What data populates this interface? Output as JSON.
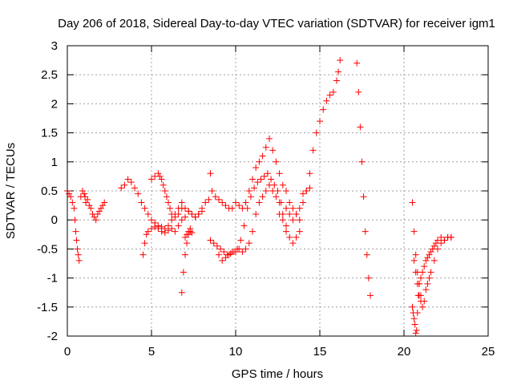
{
  "chart_data": {
    "type": "scatter",
    "title": "Day 206 of 2018, Sidereal Day-to-day VTEC variation (SDTVAR) for receiver igm1",
    "xlabel": "GPS time / hours",
    "ylabel": "SDTVAR / TECUs",
    "xlim": [
      0,
      25
    ],
    "ylim": [
      -2,
      3
    ],
    "xticks": [
      0,
      5,
      10,
      15,
      20,
      25
    ],
    "yticks": [
      -2,
      -1.5,
      -1,
      -0.5,
      0,
      0.5,
      1,
      1.5,
      2,
      2.5,
      3
    ],
    "xtick_labels": [
      "0",
      "5",
      "10",
      "15",
      "20",
      "25"
    ],
    "ytick_labels": [
      "-2",
      "-1.5",
      "-1",
      "-0.5",
      "0",
      "0.5",
      "1",
      "1.5",
      "2",
      "2.5",
      "3"
    ],
    "grid": true,
    "marker": "plus",
    "color": "#ff0000",
    "series": [
      {
        "name": "SDTVAR",
        "x": [
          0.0,
          0.1,
          0.2,
          0.3,
          0.4,
          0.45,
          0.5,
          0.55,
          0.6,
          0.65,
          0.7,
          0.8,
          0.9,
          1.0,
          1.05,
          1.1,
          1.2,
          1.3,
          1.4,
          1.5,
          1.6,
          1.7,
          1.8,
          1.9,
          2.0,
          2.1,
          2.2,
          3.2,
          3.4,
          3.6,
          3.8,
          4.0,
          4.2,
          4.4,
          4.6,
          4.8,
          5.0,
          5.2,
          5.4,
          5.6,
          5.8,
          6.0,
          6.2,
          6.4,
          6.6,
          6.8,
          7.0,
          7.2,
          7.4,
          7.6,
          7.8,
          8.0,
          8.2,
          8.4,
          4.5,
          4.6,
          4.7,
          4.8,
          5.0,
          5.2,
          5.4,
          5.6,
          5.8,
          6.0,
          6.2,
          6.4,
          6.6,
          6.8,
          7.0,
          7.2,
          7.4,
          7.6,
          7.8,
          8.0,
          5.0,
          5.2,
          5.4,
          5.5,
          5.6,
          5.7,
          5.8,
          5.9,
          6.0,
          6.1,
          6.2,
          6.4,
          6.6,
          6.8,
          6.8,
          6.9,
          7.0,
          7.1,
          7.2,
          7.3,
          7.0,
          7.1,
          7.2,
          7.3,
          7.4,
          8.5,
          8.6,
          8.8,
          9.0,
          9.2,
          9.4,
          9.6,
          9.8,
          10.0,
          10.2,
          10.4,
          10.6,
          10.8,
          11.0,
          11.2,
          11.4,
          11.6,
          11.8,
          12.0,
          12.2,
          12.4,
          12.6,
          12.8,
          13.0,
          13.2,
          13.4,
          13.6,
          13.8,
          9.0,
          9.2,
          9.4,
          9.6,
          9.8,
          10.0,
          10.2,
          10.4,
          10.6,
          10.8,
          11.0,
          11.2,
          11.4,
          11.6,
          11.8,
          12.0,
          12.2,
          12.4,
          12.6,
          12.8,
          13.0,
          8.5,
          8.7,
          8.9,
          9.1,
          9.3,
          9.5,
          9.7,
          9.9,
          10.1,
          10.3,
          10.5,
          10.7,
          10.9,
          11.1,
          11.3,
          11.5,
          11.7,
          11.9,
          12.1,
          12.3,
          12.5,
          12.7,
          12.6,
          12.8,
          13.0,
          13.2,
          13.4,
          13.6,
          13.8,
          14.0,
          14.2,
          14.4,
          14.6,
          14.8,
          15.0,
          15.2,
          15.4,
          15.6,
          15.8,
          16.0,
          16.1,
          16.2,
          13.0,
          13.2,
          13.4,
          13.6,
          13.8,
          14.0,
          14.2,
          14.4,
          17.2,
          17.3,
          17.4,
          17.5,
          17.6,
          17.7,
          17.8,
          17.9,
          18.0,
          20.5,
          20.55,
          20.6,
          20.65,
          20.7,
          20.75,
          20.8,
          20.85,
          20.9,
          21.0,
          21.1,
          21.2,
          21.3,
          21.4,
          21.5,
          21.6,
          21.7,
          21.8,
          21.9,
          22.0,
          22.2,
          22.4,
          22.6,
          22.8,
          20.6,
          20.7,
          20.8,
          20.9,
          21.0,
          21.1,
          21.2,
          21.3,
          21.4,
          21.5,
          21.6,
          21.8,
          22.0,
          22.2,
          22.4,
          22.6,
          22.8,
          20.5,
          20.6,
          20.7,
          20.8,
          20.9,
          21.0
        ],
        "y": [
          0.5,
          0.45,
          0.4,
          0.3,
          0.2,
          0.0,
          -0.2,
          -0.35,
          -0.5,
          -0.6,
          -0.7,
          0.4,
          0.5,
          0.45,
          0.4,
          0.3,
          0.35,
          0.25,
          0.2,
          0.1,
          0.05,
          0.0,
          0.1,
          0.15,
          0.2,
          0.25,
          0.3,
          0.55,
          0.6,
          0.7,
          0.65,
          0.55,
          0.45,
          0.3,
          0.2,
          0.1,
          0.0,
          -0.05,
          -0.1,
          -0.12,
          -0.15,
          -0.1,
          0.0,
          0.1,
          0.2,
          0.3,
          0.2,
          0.15,
          0.1,
          0.05,
          0.1,
          0.2,
          0.3,
          0.35,
          -0.6,
          -0.4,
          -0.25,
          -0.2,
          -0.15,
          -0.12,
          -0.15,
          -0.2,
          -0.22,
          -0.18,
          -0.15,
          -0.2,
          -0.1,
          0.0,
          0.05,
          0.15,
          0.1,
          0.05,
          0.1,
          0.15,
          0.7,
          0.75,
          0.8,
          0.75,
          0.7,
          0.6,
          0.5,
          0.4,
          0.3,
          0.2,
          0.1,
          0.05,
          0.1,
          0.2,
          -1.25,
          -0.9,
          -0.6,
          -0.4,
          -0.25,
          -0.15,
          -0.3,
          -0.25,
          -0.2,
          -0.2,
          -0.22,
          0.8,
          0.5,
          0.4,
          0.35,
          0.3,
          0.25,
          0.2,
          0.2,
          0.3,
          0.25,
          0.2,
          0.3,
          0.5,
          0.7,
          0.9,
          1.0,
          1.1,
          1.25,
          1.4,
          1.2,
          1.0,
          0.8,
          0.6,
          0.5,
          0.3,
          0.2,
          0.1,
          -0.2,
          -0.6,
          -0.7,
          -0.65,
          -0.6,
          -0.55,
          -0.55,
          -0.5,
          -0.55,
          -0.5,
          -0.4,
          -0.2,
          0.1,
          0.3,
          0.4,
          0.5,
          0.6,
          0.5,
          0.4,
          0.3,
          0.1,
          -0.1,
          -0.35,
          -0.4,
          -0.45,
          -0.5,
          -0.55,
          -0.6,
          -0.58,
          -0.55,
          -0.5,
          -0.35,
          -0.1,
          0.2,
          0.4,
          0.55,
          0.65,
          0.7,
          0.75,
          0.8,
          0.7,
          0.6,
          0.5,
          0.3,
          0.1,
          0.0,
          -0.2,
          -0.3,
          -0.4,
          -0.3,
          0.0,
          0.3,
          0.5,
          0.8,
          1.2,
          1.5,
          1.7,
          1.9,
          2.05,
          2.15,
          2.2,
          2.4,
          2.55,
          2.75,
          0.2,
          0.1,
          0.0,
          0.1,
          0.2,
          0.45,
          0.5,
          0.55,
          2.7,
          2.2,
          1.6,
          1.0,
          0.4,
          -0.2,
          -0.6,
          -1.0,
          -1.3,
          -1.5,
          -1.6,
          -1.7,
          -1.8,
          -1.95,
          -1.9,
          -1.6,
          -1.3,
          -1.1,
          -1.0,
          -0.9,
          -0.8,
          -0.7,
          -0.65,
          -0.6,
          -0.55,
          -0.5,
          -0.45,
          -0.4,
          -0.35,
          -0.3,
          -0.35,
          -0.3,
          -0.3,
          -0.7,
          -0.9,
          -1.1,
          -1.3,
          -1.4,
          -1.5,
          -1.4,
          -1.2,
          -1.1,
          -1.0,
          -0.9,
          -0.7,
          -0.5,
          -0.4,
          -0.35,
          -0.3,
          -0.3,
          0.3,
          -0.2,
          -0.6,
          -0.9,
          -1.1,
          -1.3
        ]
      }
    ]
  }
}
